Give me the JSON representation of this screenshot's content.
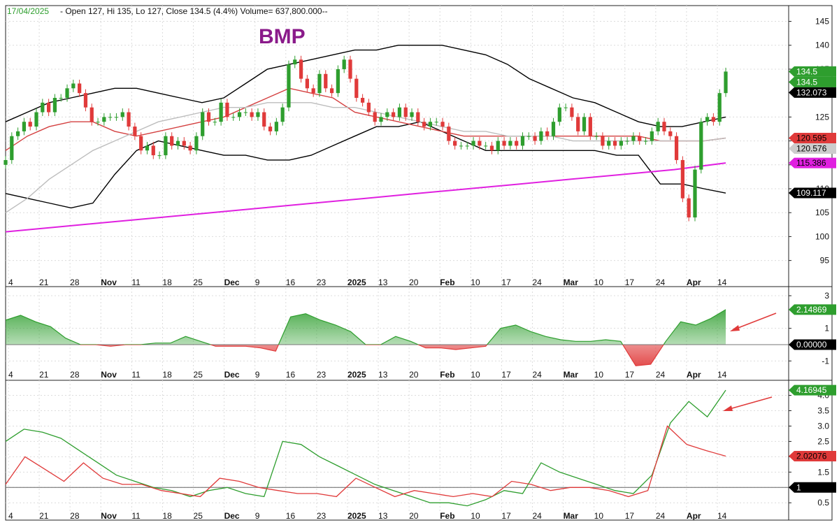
{
  "header": {
    "date": "17/04/2025",
    "ohlc": "-  Open 127, Hi 135, Lo 127, Close 134.5 (4.4%) Volume= 637,800.000--"
  },
  "colors": {
    "up": "#2e9e2e",
    "down": "#e03a3a",
    "band": "#000000",
    "ma_red": "#d44040",
    "ma_gray": "#bdbdbd",
    "ma_magenta": "#e020e0",
    "title": "#8a1a8a",
    "arrow": "#e03a3a"
  },
  "chart_data": [
    {
      "type": "candlestick",
      "title": "BMP",
      "x_labels": [
        "4",
        "21",
        "28",
        "Nov",
        "11",
        "18",
        "25",
        "Dec",
        "9",
        "16",
        "23",
        "2025",
        "13",
        "20",
        "Feb",
        "10",
        "17",
        "24",
        "Mar",
        "10",
        "17",
        "24",
        "Apr",
        "14"
      ],
      "bold_labels": [
        "Nov",
        "Dec",
        "2025",
        "Feb",
        "Mar",
        "Apr"
      ],
      "ylim": [
        91,
        148
      ],
      "yticks": [
        95,
        100,
        105,
        110,
        115,
        120,
        125,
        135,
        140,
        145
      ],
      "grid": true,
      "candles_close": [
        116,
        121,
        122,
        124,
        123,
        126,
        128,
        126,
        129,
        129,
        131,
        132,
        130,
        127,
        124,
        124,
        125,
        125,
        125,
        126,
        123,
        121,
        118,
        119,
        117,
        117,
        121,
        119,
        120,
        119,
        118,
        121,
        126,
        124,
        124,
        128,
        125,
        125,
        126,
        126,
        125,
        126,
        123,
        122,
        124,
        127,
        136,
        137,
        133,
        131,
        130,
        134,
        131,
        130,
        135,
        137,
        133,
        129,
        128,
        126,
        124,
        125,
        126,
        125,
        127,
        125,
        126,
        124,
        123,
        124,
        124,
        123,
        120,
        119,
        119,
        119,
        120,
        119,
        119,
        118,
        120,
        119,
        120,
        119,
        121,
        121,
        120,
        122,
        121,
        124,
        127,
        127,
        125,
        122,
        125,
        121,
        121,
        119,
        120,
        119,
        120,
        120,
        121,
        120,
        120,
        122,
        124,
        122,
        121,
        116,
        108,
        104,
        114,
        124,
        125,
        124,
        130,
        134.5
      ],
      "overlays": [
        {
          "name": "Upper Bollinger",
          "color": "#000000",
          "values": [
            124,
            126,
            128,
            129,
            130,
            131,
            131,
            130,
            129,
            128,
            129,
            132,
            135,
            136,
            137,
            138,
            139,
            139,
            140,
            140,
            140,
            139,
            138,
            136,
            133,
            131,
            129,
            128,
            126,
            124,
            123,
            123,
            124,
            125
          ]
        },
        {
          "name": "Lower Bollinger",
          "color": "#000000",
          "values": [
            109,
            108,
            107,
            106,
            107,
            113,
            118,
            120,
            119,
            118,
            117,
            117,
            116,
            116,
            117,
            119,
            121,
            123,
            123,
            124,
            122,
            120,
            118,
            118,
            118,
            118,
            118,
            118,
            117,
            117,
            111,
            111,
            110,
            109.1
          ]
        },
        {
          "name": "MA short",
          "color": "#d44040",
          "values": [
            118,
            121,
            123,
            124,
            124,
            122,
            121,
            122,
            123,
            124,
            125,
            127,
            129,
            131,
            130,
            129,
            126,
            125,
            124,
            123,
            122,
            121,
            121,
            121,
            121,
            121,
            121,
            121,
            121,
            121,
            120,
            120,
            120,
            120.6
          ]
        },
        {
          "name": "MA medium",
          "color": "#bdbdbd",
          "values": [
            105,
            108,
            112,
            115,
            118,
            120,
            122,
            124,
            125,
            126,
            127,
            127,
            128,
            128,
            128,
            127,
            127,
            126,
            125,
            124,
            123,
            122,
            122,
            121,
            121,
            121,
            120,
            120,
            120,
            120,
            120,
            120,
            120,
            120.6
          ]
        },
        {
          "name": "MA long",
          "color": "#e020e0",
          "values": [
            101,
            102,
            103,
            104,
            105,
            106,
            107,
            108,
            109,
            110,
            111,
            112,
            113,
            114,
            115.4
          ]
        }
      ],
      "tags": [
        {
          "label": "134.5",
          "value": 134.5,
          "bg": "#2e9e2e",
          "fg": "#ffffff"
        },
        {
          "label": "134.5",
          "value": 134.5,
          "bg": "#2e9e2e",
          "fg": "#ffffff"
        },
        {
          "label": "132.073",
          "value": 132.073,
          "bg": "#000000",
          "fg": "#ffffff"
        },
        {
          "label": "120.595",
          "value": 120.595,
          "bg": "#e03a3a",
          "fg": "#000000"
        },
        {
          "label": "120.576",
          "value": 120.576,
          "bg": "#cccccc",
          "fg": "#000000"
        },
        {
          "label": "115.386",
          "value": 115.386,
          "bg": "#e020e0",
          "fg": "#000000"
        },
        {
          "label": "109.117",
          "value": 109.117,
          "bg": "#000000",
          "fg": "#ffffff"
        }
      ]
    },
    {
      "type": "area",
      "x_labels": [
        "4",
        "21",
        "28",
        "Nov",
        "11",
        "18",
        "25",
        "Dec",
        "9",
        "16",
        "23",
        "2025",
        "13",
        "20",
        "Feb",
        "10",
        "17",
        "24",
        "Mar",
        "10",
        "17",
        "24",
        "Apr",
        "14"
      ],
      "ylim": [
        -1.5,
        3.3
      ],
      "yticks": [
        3,
        1,
        -1
      ],
      "zero_line": 0,
      "series": [
        {
          "values": [
            1.5,
            1.8,
            1.4,
            1.1,
            0.4,
            0.0,
            0.0,
            -0.1,
            0.0,
            0.0,
            0.1,
            0.1,
            0.5,
            0.2,
            -0.1,
            -0.1,
            -0.1,
            -0.2,
            -0.4,
            1.7,
            1.9,
            1.5,
            1.2,
            0.8,
            0.0,
            0.0,
            0.5,
            0.2,
            -0.2,
            -0.2,
            -0.3,
            -0.2,
            -0.1,
            1.0,
            1.2,
            0.8,
            0.5,
            0.3,
            0.2,
            0.2,
            0.3,
            0.2,
            -1.3,
            -1.2,
            0.2,
            1.4,
            1.2,
            1.6,
            2.14869
          ]
        }
      ],
      "tags": [
        {
          "label": "2.14869",
          "value": 2.14869,
          "bg": "#2e9e2e",
          "fg": "#ffffff"
        },
        {
          "label": "0.00000",
          "value": 0,
          "bg": "#000000",
          "fg": "#ffffff"
        }
      ]
    },
    {
      "type": "line",
      "x_labels": [
        "4",
        "21",
        "28",
        "Nov",
        "11",
        "18",
        "25",
        "Dec",
        "9",
        "16",
        "23",
        "2025",
        "13",
        "20",
        "Feb",
        "10",
        "17",
        "24",
        "Mar",
        "10",
        "17",
        "24",
        "Apr",
        "14"
      ],
      "ylim": [
        0.3,
        4.4
      ],
      "yticks": [
        4.0,
        3.5,
        3.0,
        2.5,
        2.0,
        1.5,
        1.0,
        0.5
      ],
      "ref_line": 1.0,
      "series": [
        {
          "color": "#2e9e2e",
          "values": [
            2.5,
            2.9,
            2.8,
            2.6,
            2.2,
            1.8,
            1.4,
            1.2,
            1.0,
            0.9,
            0.7,
            0.9,
            1.0,
            0.8,
            0.7,
            2.5,
            2.4,
            2.0,
            1.7,
            1.4,
            1.1,
            0.9,
            0.7,
            0.5,
            0.5,
            0.4,
            0.6,
            0.9,
            0.8,
            1.8,
            1.5,
            1.3,
            1.1,
            0.9,
            0.8,
            1.4,
            3.1,
            3.8,
            3.3,
            4.16945
          ]
        },
        {
          "color": "#e03a3a",
          "values": [
            1.1,
            2.0,
            1.6,
            1.2,
            1.8,
            1.3,
            1.1,
            1.1,
            0.9,
            0.8,
            0.7,
            1.3,
            1.2,
            1.0,
            0.9,
            0.8,
            0.8,
            0.7,
            1.3,
            1.0,
            0.7,
            0.9,
            0.8,
            0.7,
            0.8,
            0.7,
            1.2,
            1.1,
            0.9,
            1.0,
            1.0,
            0.9,
            0.7,
            0.9,
            3.0,
            2.4,
            2.2,
            2.02076
          ]
        }
      ],
      "tags": [
        {
          "label": "4.16945",
          "value": 4.16945,
          "bg": "#2e9e2e",
          "fg": "#ffffff"
        },
        {
          "label": "2.02076",
          "value": 2.02076,
          "bg": "#e03a3a",
          "fg": "#000000"
        },
        {
          "label": "1",
          "value": 1.0,
          "bg": "#000000",
          "fg": "#ffffff"
        }
      ]
    }
  ]
}
